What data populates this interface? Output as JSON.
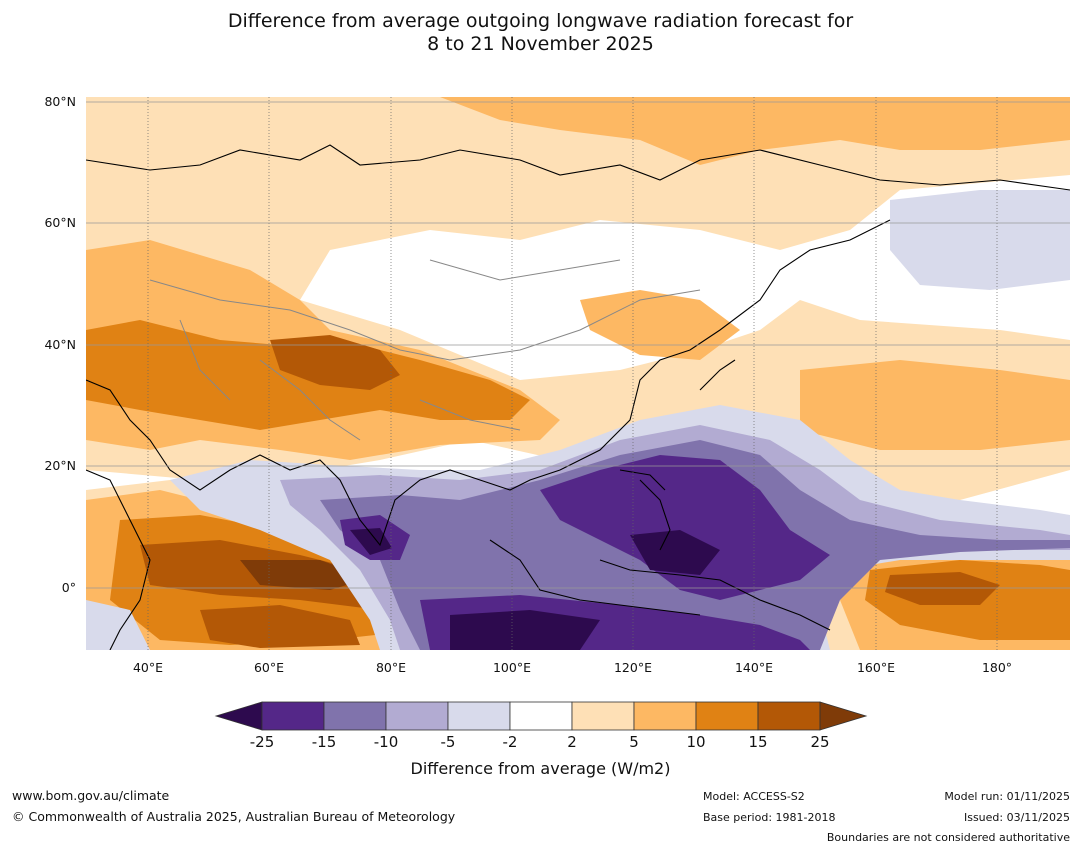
{
  "title": {
    "line1": "Difference from average outgoing longwave radiation forecast for",
    "line2": "8 to 21 November 2025"
  },
  "axes": {
    "lat_labels": [
      "80°N",
      "60°N",
      "40°N",
      "20°N",
      "0°"
    ],
    "lon_labels": [
      "40°E",
      "60°E",
      "80°E",
      "100°E",
      "120°E",
      "140°E",
      "160°E",
      "180°"
    ]
  },
  "colorbar": {
    "ticks": [
      "-25",
      "-15",
      "-10",
      "-5",
      "-2",
      "2",
      "5",
      "10",
      "15",
      "25"
    ],
    "label": "Difference from average (W/m2)",
    "colors": [
      "#2d0a4e",
      "#542788",
      "#8073ac",
      "#b2abd2",
      "#d8daeb",
      "#ffffff",
      "#fee0b6",
      "#fdb863",
      "#e08214",
      "#b35806",
      "#7f3b08"
    ]
  },
  "footer": {
    "url": "www.bom.gov.au/climate",
    "copyright": "© Commonwealth of Australia 2025, Australian Bureau of Meteorology",
    "model": "Model: ACCESS-S2",
    "base_period": "Base period: 1981-2018",
    "model_run": "Model run: 01/11/2025",
    "issued": "Issued: 03/11/2025",
    "disclaimer": "Boundaries are not considered authoritative"
  }
}
